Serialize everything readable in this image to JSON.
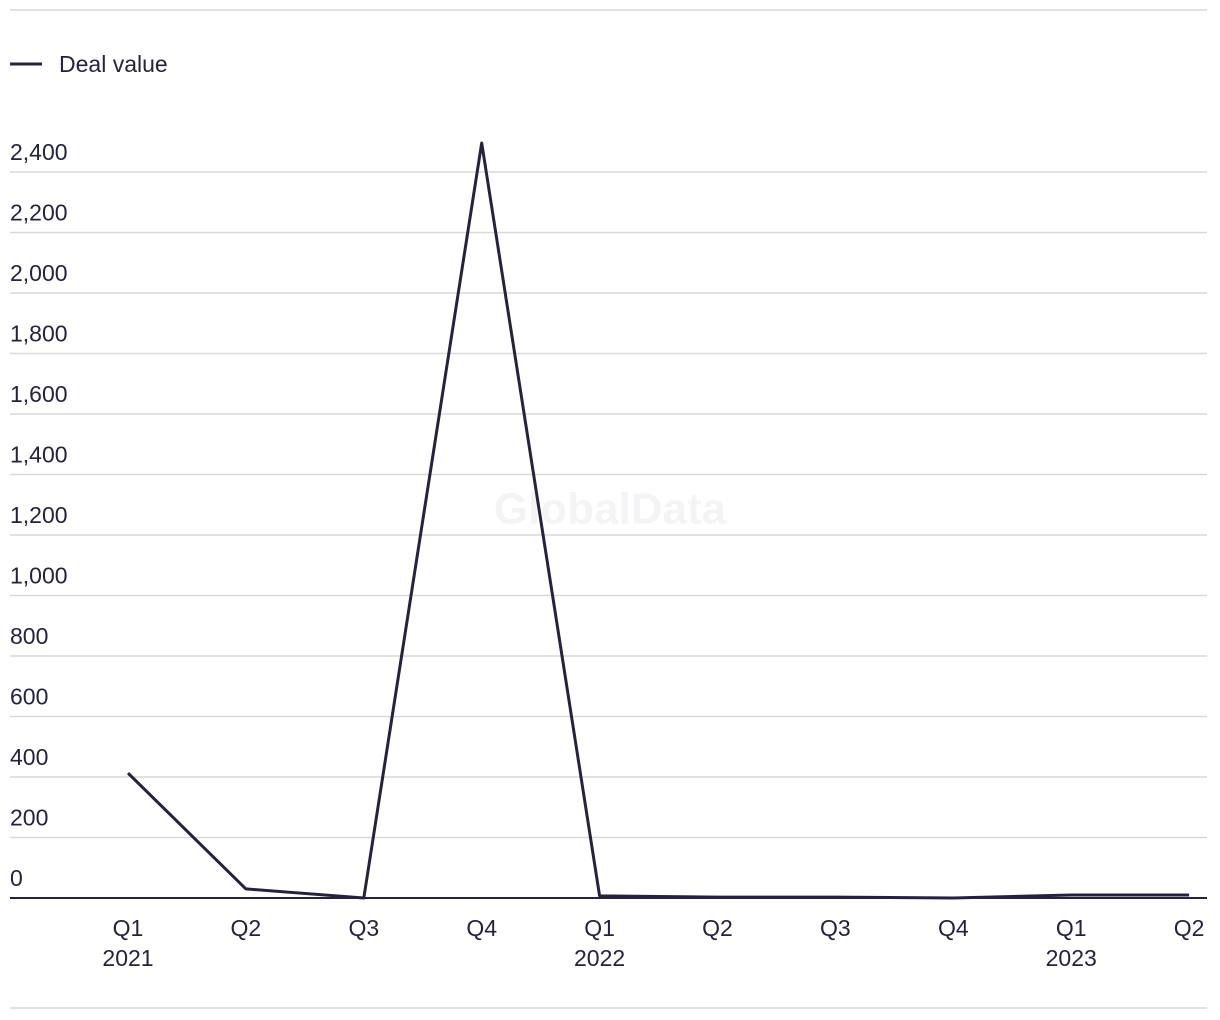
{
  "chart_data": {
    "type": "line",
    "watermark": "GlobalData",
    "categories": [
      "Q1",
      "Q2",
      "Q3",
      "Q4",
      "Q1",
      "Q2",
      "Q3",
      "Q4",
      "Q1",
      "Q2"
    ],
    "years": [
      "2021",
      null,
      null,
      null,
      "2022",
      null,
      null,
      null,
      "2023",
      null
    ],
    "series": [
      {
        "name": "Deal value",
        "color": "#24233f",
        "values": [
          413,
          30,
          0,
          2496,
          7,
          3,
          3,
          0,
          10,
          10
        ]
      }
    ],
    "ylim": [
      0,
      2500
    ],
    "yticks": [
      0,
      200,
      400,
      600,
      800,
      {
        "value": 1000,
        "label": "1,000"
      },
      {
        "value": 1200,
        "label": "1,200"
      },
      {
        "value": 1400,
        "label": "1,400"
      },
      {
        "value": 1600,
        "label": "1,600"
      },
      {
        "value": 1800,
        "label": "1,800"
      },
      {
        "value": 2000,
        "label": "2,000"
      },
      {
        "value": 2200,
        "label": "2,200"
      },
      {
        "value": 2400,
        "label": "2,400"
      }
    ],
    "grid": true,
    "legend": "top-left"
  }
}
